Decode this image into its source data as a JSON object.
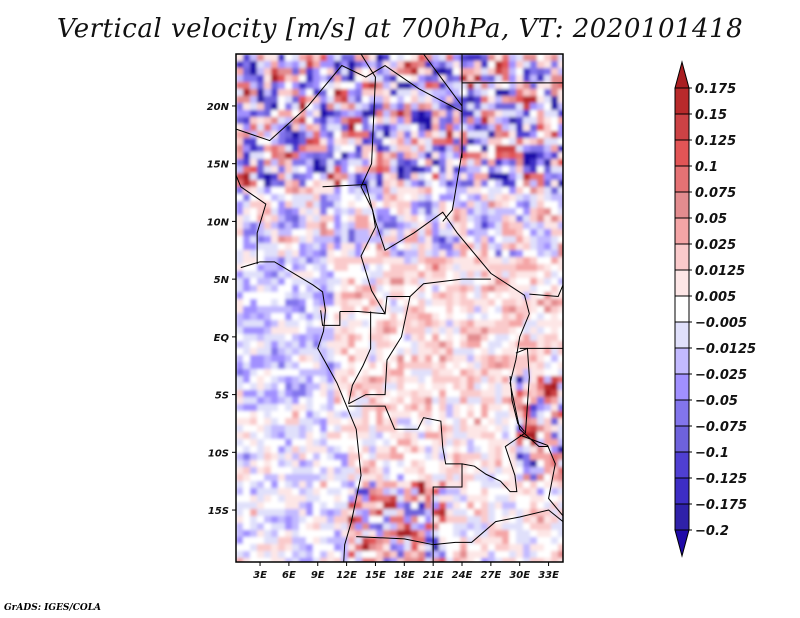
{
  "title": "Vertical velocity [m/s] at 700hPa, VT: 2020101418",
  "footer": "GrADS: IGES/COLA",
  "chart_data": {
    "type": "heatmap",
    "title": "Vertical velocity [m/s] at 700hPa, VT: 2020101418",
    "variable": "Vertical velocity",
    "units": "m/s",
    "level": "700hPa",
    "valid_time": "2020101418",
    "xlabel": "",
    "ylabel": "",
    "x_range_deg_east": [
      0.5,
      34.5
    ],
    "y_range_deg_north": [
      -19.5,
      24.5
    ],
    "x_ticks": [
      {
        "value": 3,
        "label": "3E"
      },
      {
        "value": 6,
        "label": "6E"
      },
      {
        "value": 9,
        "label": "9E"
      },
      {
        "value": 12,
        "label": "12E"
      },
      {
        "value": 15,
        "label": "15E"
      },
      {
        "value": 18,
        "label": "18E"
      },
      {
        "value": 21,
        "label": "21E"
      },
      {
        "value": 24,
        "label": "24E"
      },
      {
        "value": 27,
        "label": "27E"
      },
      {
        "value": 30,
        "label": "30E"
      },
      {
        "value": 33,
        "label": "33E"
      }
    ],
    "y_ticks": [
      {
        "value": 20,
        "label": "20N"
      },
      {
        "value": 15,
        "label": "15N"
      },
      {
        "value": 10,
        "label": "10N"
      },
      {
        "value": 5,
        "label": "5N"
      },
      {
        "value": 0,
        "label": "EQ"
      },
      {
        "value": -5,
        "label": "5S"
      },
      {
        "value": -10,
        "label": "10S"
      },
      {
        "value": -15,
        "label": "15S"
      }
    ],
    "colorbar": {
      "orientation": "vertical",
      "placement": "right",
      "extend": "both",
      "labels": [
        "0.175",
        "0.15",
        "0.125",
        "0.1",
        "0.075",
        "0.05",
        "0.025",
        "0.0125",
        "0.005",
        "-0.005",
        "-0.0125",
        "-0.025",
        "-0.05",
        "-0.075",
        "-0.1",
        "-0.125",
        "-0.175",
        "-0.2"
      ],
      "colors": [
        "#a91e21",
        "#b82a2b",
        "#cc4245",
        "#e25556",
        "#e57274",
        "#e38c8f",
        "#f4a5a6",
        "#facacb",
        "#fde6e6",
        "#ffffff",
        "#e0e0fb",
        "#c3baff",
        "#a190ff",
        "#8275ec",
        "#6e62dc",
        "#4f3fd2",
        "#3d2dc5",
        "#2f21a9",
        "#1f0aa8"
      ]
    },
    "regions_summary": {
      "north_sahel_20N_15N": "strong alternating up/down (dark red and dark blue streaks)",
      "central_africa_10N_5S": "weak mostly positive (light pink) with scattered light blue",
      "atlantic_west": "weak negative/neutral (light blue and white)",
      "southwest_angola_10S_19S": "strong red/blue features near 12E-20E",
      "east_africa_rift_5S_10S": "strong red and blue near 30E-34E"
    }
  }
}
